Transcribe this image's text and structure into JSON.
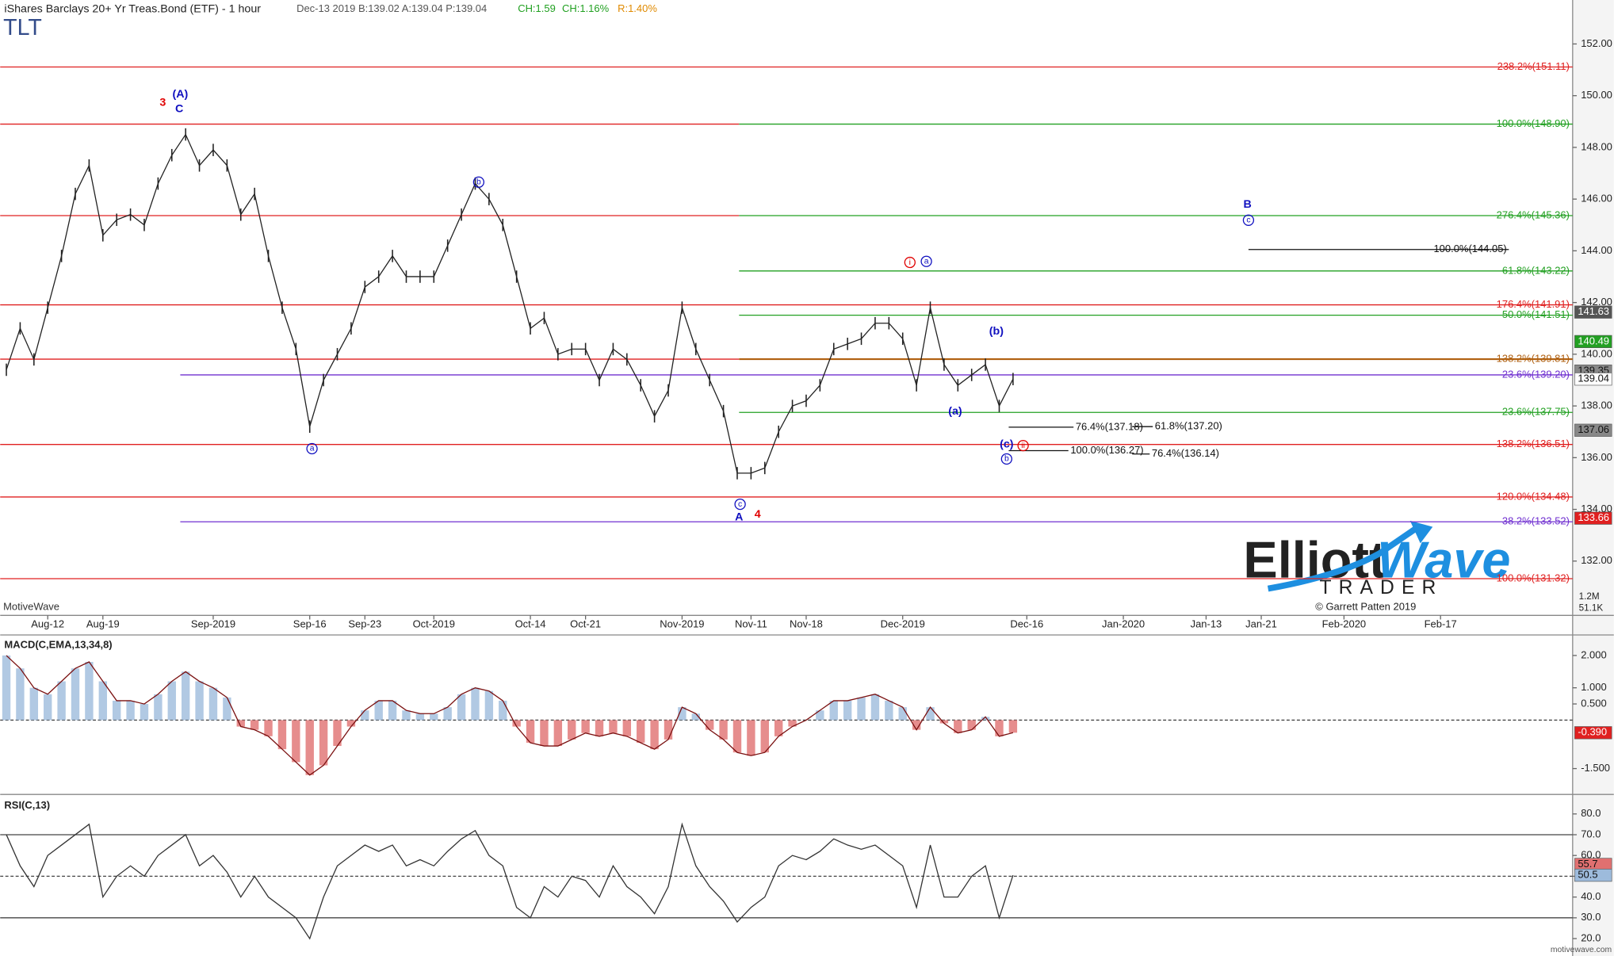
{
  "header": {
    "title": "iShares Barclays 20+ Yr Treas.Bond (ETF) - 1 hour",
    "quote": "Dec-13 2019 B:139.02 A:139.04 P:139.04",
    "change": "CH:1.59",
    "change_pct": "CH:1.16%",
    "range": "R:1.40%",
    "symbol": "TLT"
  },
  "chart_data": [
    {
      "type": "line",
      "color": "#222222",
      "categories": [
        null,
        null,
        null,
        "Aug-12",
        null,
        null,
        null,
        "Aug-19",
        null,
        null,
        null,
        null,
        null,
        null,
        null,
        "Sep-2019",
        null,
        null,
        null,
        null,
        null,
        null,
        "Sep-16",
        null,
        null,
        null,
        "Sep-23",
        null,
        null,
        null,
        null,
        "Oct-2019",
        null,
        null,
        null,
        null,
        null,
        null,
        "Oct-14",
        null,
        null,
        null,
        "Oct-21",
        null,
        null,
        null,
        null,
        null,
        null,
        "Nov-2019",
        null,
        null,
        null,
        null,
        "Nov-11",
        null,
        null,
        null,
        "Nov-18",
        null,
        null,
        null,
        null,
        null,
        null,
        "Dec-2019",
        null,
        null,
        null,
        null,
        null,
        null,
        null,
        null,
        "Dec-16",
        null,
        null,
        null,
        null,
        null,
        null,
        "Jan-2020",
        null,
        null,
        null,
        null,
        null,
        "Jan-13",
        null,
        null,
        null,
        "Jan-21",
        null,
        null,
        null,
        null,
        null,
        "Feb-2020",
        null,
        null,
        null,
        null,
        null,
        null,
        "Feb-17",
        null,
        null,
        null,
        null,
        null,
        null,
        null,
        null,
        null
      ],
      "values": [
        139.4,
        141,
        139.8,
        141.8,
        143.8,
        146.2,
        147.3,
        144.6,
        145.2,
        145.4,
        145,
        146.6,
        147.7,
        148.5,
        147.3,
        147.9,
        147.3,
        145.4,
        146.2,
        143.8,
        141.8,
        140.2,
        137.2,
        139,
        140,
        141,
        142.6,
        143,
        143.8,
        143,
        143,
        143,
        144.2,
        145.4,
        146.6,
        146,
        145,
        143,
        141,
        141.4,
        140,
        140.2,
        140.2,
        139,
        140.2,
        139.8,
        138.8,
        137.6,
        138.6,
        141.8,
        140.2,
        139,
        137.8,
        135.4,
        135.4,
        135.6,
        137,
        138,
        138.2,
        138.8,
        140.2,
        140.4,
        140.6,
        141.2,
        141.2,
        140.6,
        138.8,
        141.8,
        139.6,
        138.8,
        139.2,
        139.6,
        138,
        139.04,
        null,
        null,
        null,
        null,
        null,
        null,
        null,
        null,
        null,
        null,
        null,
        null,
        null,
        null,
        null,
        null,
        null,
        null,
        null,
        null,
        null,
        null,
        null,
        null,
        null,
        null,
        null,
        null,
        null,
        null,
        null,
        null,
        null,
        null,
        null,
        null,
        null,
        null,
        null,
        null
      ],
      "ylim": [
        129.9,
        153.7
      ],
      "yticks": [
        {
          "value": 132,
          "label": "132.00"
        },
        {
          "value": 134,
          "label": "134.00"
        },
        {
          "value": 136,
          "label": "136.00"
        },
        {
          "value": 138,
          "label": "138.00"
        },
        {
          "value": 140,
          "label": "140.00"
        },
        {
          "value": 142,
          "label": "142.00"
        },
        {
          "value": 144,
          "label": "144.00"
        },
        {
          "value": 146,
          "label": "146.00"
        },
        {
          "value": 148,
          "label": "148.00"
        },
        {
          "value": 150,
          "label": "150.00"
        },
        {
          "value": 152,
          "label": "152.00"
        }
      ],
      "levels": [
        {
          "value": 151.11,
          "color": "#e02020",
          "label": "238.2%(151.11)"
        },
        {
          "value": 148.9,
          "color": "#e02020"
        },
        {
          "value": 148.9,
          "color": "#22a022",
          "label": "100.0%(148.90)"
        },
        {
          "value": 145.36,
          "color": "#e02020"
        },
        {
          "value": 145.36,
          "color": "#22a022",
          "label": "276.4%(145.36)"
        },
        {
          "value": 144.05,
          "color": "#111111",
          "label": "100.0%(144.05)"
        },
        {
          "value": 143.22,
          "color": "#22a022",
          "label": "61.8%(143.22)"
        },
        {
          "value": 141.91,
          "color": "#e02020",
          "label": "176.4%(141.91)"
        },
        {
          "value": 141.51,
          "color": "#22a022",
          "label": "50.0%(141.51)"
        },
        {
          "value": 139.81,
          "color": "#e02020"
        },
        {
          "value": 139.81,
          "color": "#b06010",
          "label": "138.2%(139.81)"
        },
        {
          "value": 139.2,
          "color": "#7030d0",
          "label": "23.6%(139.20)"
        },
        {
          "value": 137.75,
          "color": "#22a022",
          "label": "23.6%(137.75)"
        },
        {
          "value": 137.18,
          "color": "#111111",
          "label": "76.4%(137.18)"
        },
        {
          "value": 137.2,
          "color": "#111111",
          "label": "61.8%(137.20)"
        },
        {
          "value": 136.51,
          "color": "#e02020",
          "label": "138.2%(136.51)"
        },
        {
          "value": 136.27,
          "color": "#111111",
          "label": "100.0%(136.27)"
        },
        {
          "value": 136.14,
          "color": "#111111",
          "label": "76.4%(136.14)"
        },
        {
          "value": 134.48,
          "color": "#e02020",
          "label": "120.0%(134.48)"
        },
        {
          "value": 133.52,
          "color": "#7030d0",
          "label": "38.2%(133.52)"
        },
        {
          "value": 131.32,
          "color": "#e02020",
          "label": "100.0%(131.32)"
        }
      ],
      "tags": [
        {
          "value": 141.63,
          "color": "#555555"
        },
        {
          "value": 140.49,
          "color": "#22a022"
        },
        {
          "value": 139.35,
          "color": "#888888"
        },
        {
          "value": 139.04,
          "color": "#ffffff"
        },
        {
          "value": 137.06,
          "color": "#888888"
        },
        {
          "value": 133.66,
          "color": "#e02020"
        }
      ],
      "volume_labels": [
        "1.2M",
        "51.1K"
      ],
      "watermark": "MotiveWave"
    },
    {
      "type": "macd",
      "title": "MACD(C,EMA,13,34,8)",
      "color": "#7a1010",
      "values": [
        2.0,
        1.6,
        1.0,
        0.8,
        1.2,
        1.6,
        1.8,
        1.2,
        0.6,
        0.6,
        0.5,
        0.8,
        1.2,
        1.5,
        1.2,
        1.0,
        0.7,
        -0.2,
        -0.3,
        -0.5,
        -0.9,
        -1.3,
        -1.7,
        -1.4,
        -0.8,
        -0.2,
        0.3,
        0.6,
        0.6,
        0.3,
        0.2,
        0.2,
        0.4,
        0.8,
        1.0,
        0.9,
        0.6,
        -0.2,
        -0.7,
        -0.8,
        -0.8,
        -0.6,
        -0.4,
        -0.5,
        -0.4,
        -0.5,
        -0.7,
        -0.9,
        -0.6,
        0.4,
        0.2,
        -0.3,
        -0.6,
        -1.0,
        -1.1,
        -1.0,
        -0.5,
        -0.2,
        0.0,
        0.3,
        0.6,
        0.6,
        0.7,
        0.8,
        0.6,
        0.4,
        -0.3,
        0.4,
        -0.1,
        -0.4,
        -0.3,
        0.1,
        -0.5,
        -0.39
      ],
      "ylim": [
        -2.3,
        2.54
      ],
      "yticks": [
        {
          "value": 2,
          "label": "2.000"
        },
        {
          "value": 1,
          "label": "1.000"
        },
        {
          "value": 0.5,
          "label": "0.500"
        },
        {
          "value": -1.5,
          "label": "-1.500"
        }
      ],
      "tag": {
        "value": -0.39,
        "label": "-0.390"
      }
    },
    {
      "type": "rsi",
      "title": "RSI(C,13)",
      "color": "#333333",
      "values": [
        70,
        55,
        45,
        60,
        65,
        70,
        75,
        40,
        50,
        55,
        50,
        60,
        65,
        70,
        55,
        60,
        52,
        40,
        50,
        40,
        35,
        30,
        20,
        40,
        55,
        60,
        65,
        62,
        65,
        55,
        58,
        55,
        62,
        68,
        72,
        60,
        55,
        35,
        30,
        45,
        40,
        50,
        48,
        40,
        55,
        45,
        40,
        32,
        45,
        75,
        55,
        45,
        38,
        28,
        35,
        40,
        55,
        60,
        58,
        62,
        68,
        65,
        63,
        65,
        60,
        55,
        35,
        65,
        40,
        40,
        50,
        55,
        30,
        50.5
      ],
      "ylim": [
        13.6,
        87.9
      ],
      "yticks": [
        {
          "value": 20,
          "label": "20.0"
        },
        {
          "value": 30,
          "label": "30.0"
        },
        {
          "value": 40,
          "label": "40.0"
        },
        {
          "value": 50,
          "label": "50.0"
        },
        {
          "value": 60,
          "label": "60.0"
        },
        {
          "value": 70,
          "label": "70.0"
        },
        {
          "value": 80,
          "label": "80.0"
        }
      ],
      "bands": [
        70,
        50,
        30
      ],
      "tags": [
        55.7,
        50.5
      ]
    }
  ],
  "annotations": [
    {
      "text": "3",
      "color": "#e00000"
    },
    {
      "text": "(A)",
      "color": "#1010c0"
    },
    {
      "text": "C",
      "color": "#1010c0"
    },
    {
      "text": "a",
      "color": "#1010c0",
      "circled": true
    },
    {
      "text": "b",
      "color": "#1010c0",
      "circled": true
    },
    {
      "text": "c",
      "color": "#1010c0",
      "circled": true
    },
    {
      "text": "A",
      "color": "#1010c0"
    },
    {
      "text": "4",
      "color": "#e00000"
    },
    {
      "text": "i",
      "color": "#e00000",
      "circled": true
    },
    {
      "text": "a",
      "color": "#1010c0",
      "circled": true
    },
    {
      "text": "(a)",
      "color": "#1010c0"
    },
    {
      "text": "(b)",
      "color": "#1010c0"
    },
    {
      "text": "(c)",
      "color": "#1010c0"
    },
    {
      "text": "ii",
      "color": "#e00000",
      "circled": true
    },
    {
      "text": "b",
      "color": "#1010c0",
      "circled": true
    },
    {
      "text": "B",
      "color": "#1010c0"
    },
    {
      "text": "c",
      "color": "#1010c0",
      "circled": true
    }
  ],
  "logo": {
    "word1": "Elliott",
    "word2": "Wave",
    "word3": "TRADER",
    "credit": "© Garrett Patten 2019"
  },
  "footer": "motivewave.com"
}
